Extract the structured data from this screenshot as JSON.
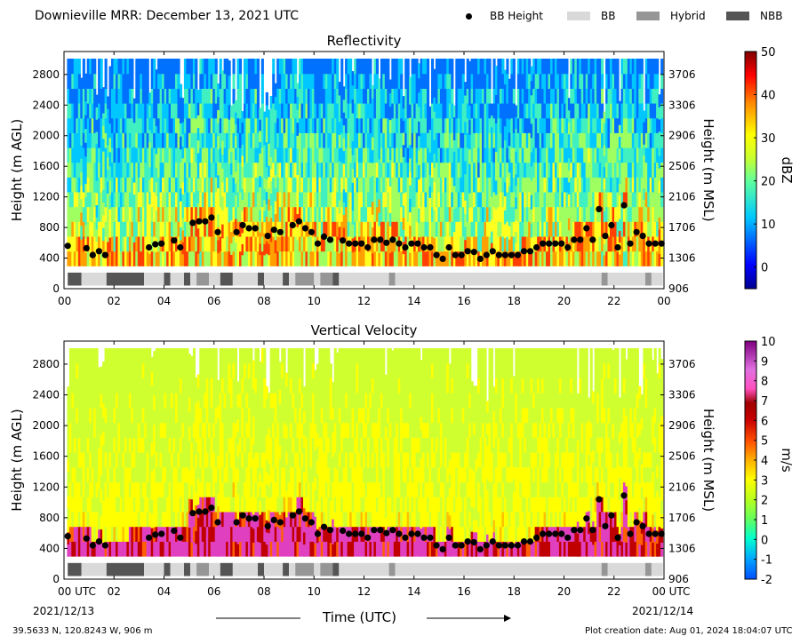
{
  "header": {
    "title": "Downieville MRR:  December 13, 2021 UTC",
    "legend": [
      {
        "label": "BB Height",
        "kind": "dot",
        "color": "#000000"
      },
      {
        "label": "BB",
        "kind": "box",
        "color": "#d9d9d9"
      },
      {
        "label": "Hybrid",
        "kind": "box",
        "color": "#969696"
      },
      {
        "label": "NBB",
        "kind": "box",
        "color": "#555555"
      }
    ]
  },
  "footer": {
    "location": "39.5633 N, 120.8243 W, 906 m",
    "created": "Plot creation date: Aug 01, 2024 18:04:07 UTC",
    "x_axis_label": "Time (UTC)",
    "start_date": "2021/12/13",
    "end_date": "2021/12/14"
  },
  "chart_data": [
    {
      "type": "heatmap",
      "title": "Reflectivity",
      "ylabel": "Height (m AGL)",
      "ylabel_right": "Height (m MSL)",
      "colorbar_label": "dBZ",
      "colorbar_ticks": [
        "50",
        "40",
        "30",
        "20",
        "10",
        "0"
      ],
      "colorbar_range": [
        -5,
        50
      ],
      "y_ticks": [
        "2800",
        "2400",
        "2000",
        "1600",
        "1200",
        "800",
        "400",
        "0"
      ],
      "y_ticks_right": [
        "3706",
        "3306",
        "2906",
        "2506",
        "2106",
        "1706",
        "1306",
        "906"
      ],
      "x_ticks": [
        "00",
        "02",
        "04",
        "06",
        "08",
        "10",
        "12",
        "14",
        "16",
        "18",
        "20",
        "22",
        "00"
      ],
      "xlim": [
        0,
        24
      ],
      "ylim": [
        0,
        3100
      ]
    },
    {
      "type": "heatmap",
      "title": "Vertical Velocity",
      "ylabel": "Height (m AGL)",
      "ylabel_right": "Height (m MSL)",
      "colorbar_label": "m/s",
      "colorbar_ticks": [
        "10",
        "9",
        "8",
        "7",
        "6",
        "5",
        "4",
        "3",
        "2",
        "1",
        "0",
        "-1",
        "-2"
      ],
      "colorbar_range": [
        -2,
        10
      ],
      "y_ticks": [
        "2800",
        "2400",
        "2000",
        "1600",
        "1200",
        "800",
        "400",
        "0"
      ],
      "y_ticks_right": [
        "3706",
        "3306",
        "2906",
        "2506",
        "2106",
        "1706",
        "1306",
        "906"
      ],
      "x_ticks": [
        "00 UTC",
        "02",
        "04",
        "06",
        "08",
        "10",
        "12",
        "14",
        "16",
        "18",
        "20",
        "22",
        "00 UTC"
      ],
      "xlim": [
        0,
        24
      ],
      "ylim": [
        0,
        3100
      ]
    }
  ],
  "bb_height": {
    "times": [
      0.15,
      0.9,
      1.15,
      1.4,
      1.65,
      3.4,
      3.65,
      3.9,
      4.4,
      4.65,
      5.15,
      5.4,
      5.65,
      5.9,
      6.15,
      6.9,
      7.15,
      7.4,
      7.65,
      8.15,
      8.4,
      8.65,
      9.15,
      9.4,
      9.65,
      9.9,
      10.15,
      10.4,
      10.65,
      11.15,
      11.4,
      11.65,
      11.9,
      12.15,
      12.4,
      12.65,
      12.9,
      13.15,
      13.4,
      13.65,
      13.9,
      14.15,
      14.4,
      14.65,
      14.9,
      15.15,
      15.4,
      15.65,
      15.9,
      16.15,
      16.4,
      16.65,
      16.9,
      17.15,
      17.4,
      17.65,
      17.9,
      18.15,
      18.4,
      18.65,
      18.9,
      19.15,
      19.4,
      19.65,
      19.9,
      20.15,
      20.4,
      20.65,
      20.9,
      21.15,
      21.4,
      21.65,
      21.9,
      22.15,
      22.4,
      22.65,
      22.9,
      23.15,
      23.4,
      23.65,
      23.9
    ],
    "heights": [
      560,
      530,
      440,
      490,
      440,
      540,
      580,
      590,
      630,
      540,
      860,
      880,
      880,
      930,
      740,
      740,
      830,
      790,
      790,
      690,
      770,
      740,
      830,
      880,
      790,
      740,
      590,
      680,
      640,
      630,
      590,
      590,
      590,
      540,
      640,
      640,
      600,
      640,
      590,
      540,
      590,
      590,
      540,
      540,
      440,
      390,
      540,
      440,
      440,
      490,
      480,
      390,
      440,
      490,
      440,
      440,
      440,
      440,
      490,
      490,
      540,
      590,
      590,
      590,
      590,
      540,
      640,
      640,
      790,
      640,
      1040,
      690,
      830,
      540,
      1090,
      590,
      740,
      690,
      590,
      590,
      590
    ]
  },
  "bb_type_bar": {
    "segments": [
      {
        "start": 0.15,
        "end": 0.7,
        "type": "NBB"
      },
      {
        "start": 0.7,
        "end": 1.7,
        "type": "BB"
      },
      {
        "start": 1.7,
        "end": 3.2,
        "type": "NBB"
      },
      {
        "start": 3.2,
        "end": 4.0,
        "type": "BB"
      },
      {
        "start": 4.0,
        "end": 4.25,
        "type": "NBB"
      },
      {
        "start": 4.25,
        "end": 4.8,
        "type": "BB"
      },
      {
        "start": 4.8,
        "end": 5.05,
        "type": "NBB"
      },
      {
        "start": 5.05,
        "end": 5.3,
        "type": "BB"
      },
      {
        "start": 5.3,
        "end": 5.8,
        "type": "Hybrid"
      },
      {
        "start": 5.8,
        "end": 6.25,
        "type": "BB"
      },
      {
        "start": 6.25,
        "end": 6.75,
        "type": "NBB"
      },
      {
        "start": 6.75,
        "end": 7.75,
        "type": "BB"
      },
      {
        "start": 7.75,
        "end": 8.0,
        "type": "NBB"
      },
      {
        "start": 8.0,
        "end": 8.75,
        "type": "BB"
      },
      {
        "start": 8.75,
        "end": 9.0,
        "type": "NBB"
      },
      {
        "start": 9.0,
        "end": 9.25,
        "type": "BB"
      },
      {
        "start": 9.25,
        "end": 10.0,
        "type": "Hybrid"
      },
      {
        "start": 10.0,
        "end": 10.25,
        "type": "BB"
      },
      {
        "start": 10.25,
        "end": 10.75,
        "type": "Hybrid"
      },
      {
        "start": 10.75,
        "end": 11.0,
        "type": "NBB"
      },
      {
        "start": 11.0,
        "end": 13.0,
        "type": "BB"
      },
      {
        "start": 13.0,
        "end": 13.25,
        "type": "Hybrid"
      },
      {
        "start": 13.25,
        "end": 21.5,
        "type": "BB"
      },
      {
        "start": 21.5,
        "end": 21.75,
        "type": "Hybrid"
      },
      {
        "start": 21.75,
        "end": 23.25,
        "type": "BB"
      },
      {
        "start": 23.25,
        "end": 23.5,
        "type": "Hybrid"
      },
      {
        "start": 23.5,
        "end": 23.95,
        "type": "BB"
      }
    ],
    "colors": {
      "BB": "#d9d9d9",
      "Hybrid": "#969696",
      "NBB": "#555555"
    }
  }
}
